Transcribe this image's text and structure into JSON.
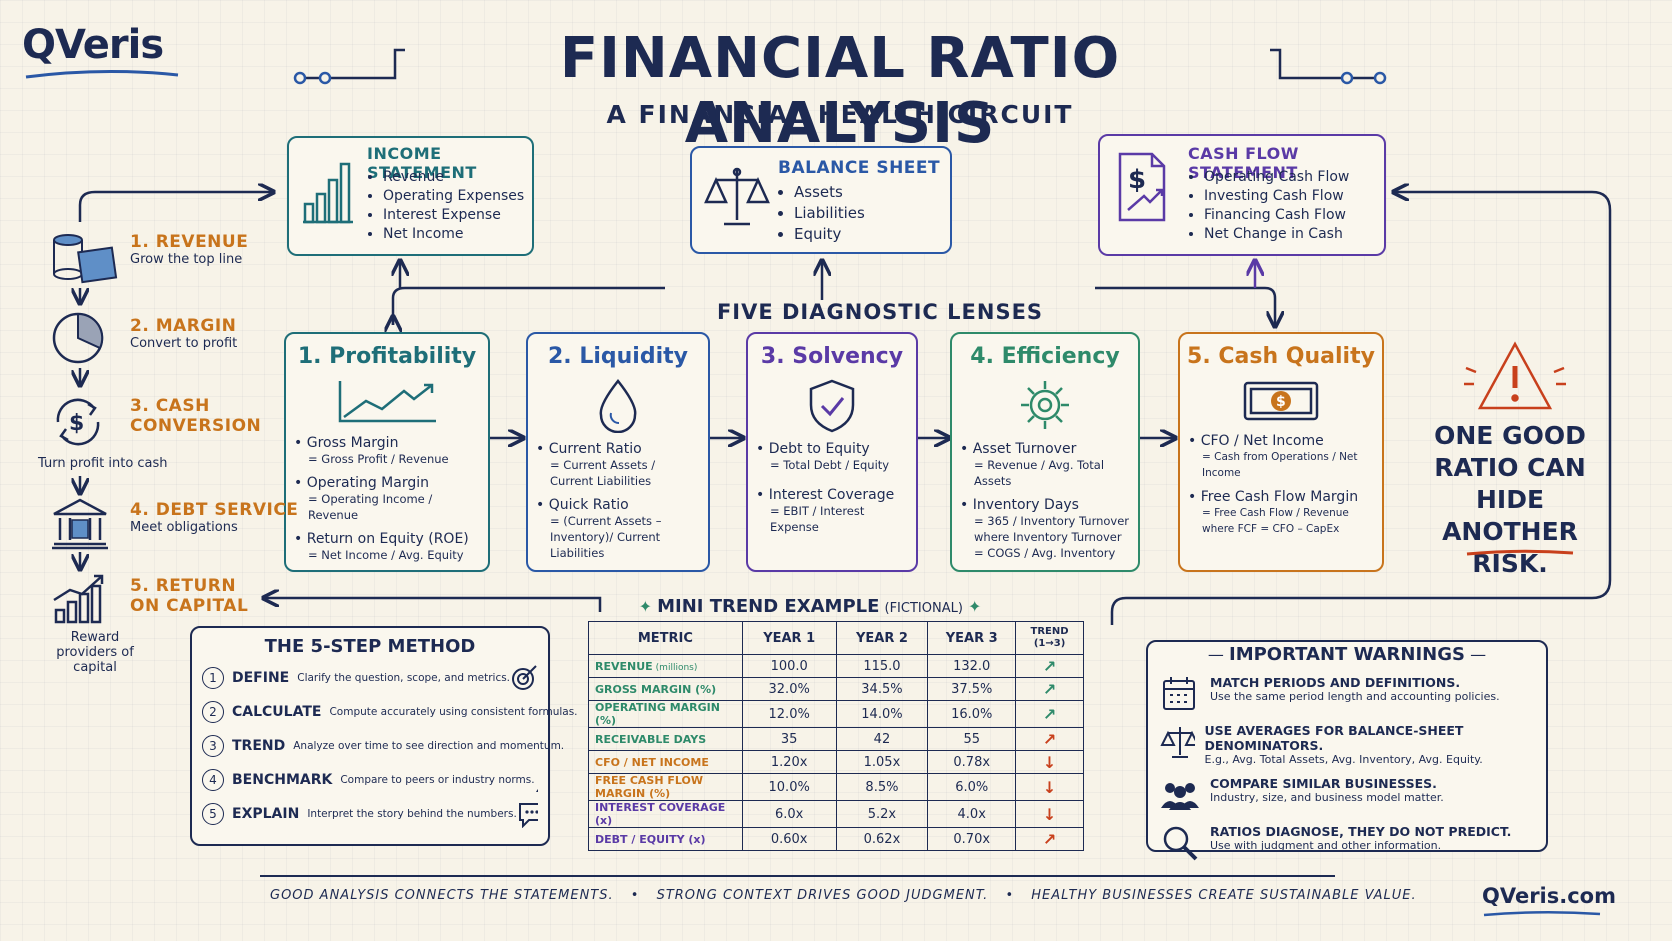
{
  "brand": {
    "logo": "QVeris",
    "url": "QVeris.com"
  },
  "title": "FINANCIAL RATIO ANALYSIS",
  "subtitle": "A FINANCIAL HEALTH CIRCUIT",
  "statements": {
    "income": {
      "title": "INCOME STATEMENT",
      "items": [
        "Revenue",
        "Operating Expenses",
        "Interest Expense",
        "Net Income"
      ]
    },
    "balance": {
      "title": "BALANCE SHEET",
      "items": [
        "Assets",
        "Liabilities",
        "Equity"
      ]
    },
    "cashflow": {
      "title": "CASH FLOW STATEMENT",
      "items": [
        "Operating Cash Flow",
        "Investing Cash Flow",
        "Financing Cash Flow",
        "Net Change in Cash"
      ]
    }
  },
  "lenses_title": "FIVE DIAGNOSTIC LENSES",
  "lenses": [
    {
      "title": "1. Profitability",
      "color": "#1e6e78",
      "ratios": [
        {
          "name": "Gross Margin",
          "formula": "= Gross Profit / Revenue"
        },
        {
          "name": "Operating Margin",
          "formula": "= Operating Income / Revenue"
        },
        {
          "name": "Return on Equity (ROE)",
          "formula": "= Net Income / Avg. Equity"
        }
      ]
    },
    {
      "title": "2. Liquidity",
      "color": "#2a58a6",
      "ratios": [
        {
          "name": "Current Ratio",
          "formula": "= Current Assets / Current Liabilities"
        },
        {
          "name": "Quick Ratio",
          "formula": "= (Current Assets – Inventory)/ Current Liabilities"
        }
      ]
    },
    {
      "title": "3. Solvency",
      "color": "#5a3aa6",
      "ratios": [
        {
          "name": "Debt to Equity",
          "formula": "= Total Debt / Equity"
        },
        {
          "name": "Interest Coverage",
          "formula": "= EBIT / Interest Expense"
        }
      ]
    },
    {
      "title": "4. Efficiency",
      "color": "#2e8a6a",
      "ratios": [
        {
          "name": "Asset Turnover",
          "formula": "= Revenue / Avg. Total Assets"
        },
        {
          "name": "Inventory Days",
          "formula": "= 365 / Inventory Turnover where Inventory Turnover = COGS / Avg. Inventory"
        }
      ]
    },
    {
      "title": "5. Cash Quality",
      "color": "#c8741c",
      "ratios": [
        {
          "name": "CFO / Net Income",
          "formula": "= Cash from Operations / Net Income"
        },
        {
          "name": "Free Cash Flow Margin",
          "formula": "= Free Cash Flow / Revenue where FCF = CFO – CapEx"
        }
      ]
    }
  ],
  "stages": [
    {
      "title": "1. Revenue",
      "sub": "Grow the top line"
    },
    {
      "title": "2. Margin",
      "sub": "Convert to profit"
    },
    {
      "title": "3. Cash Conversion",
      "sub": "Turn profit into cash"
    },
    {
      "title": "4. Debt Service",
      "sub": "Meet obligations"
    },
    {
      "title": "5. Return on Capital",
      "sub": "Reward providers of capital"
    }
  ],
  "warning_callout": "ONE GOOD RATIO CAN HIDE ANOTHER RISK.",
  "method": {
    "title": "THE 5-STEP METHOD",
    "steps": [
      {
        "num": "1",
        "name": "DEFINE",
        "desc": "Clarify the question, scope, and metrics."
      },
      {
        "num": "2",
        "name": "CALCULATE",
        "desc": "Compute accurately using consistent formulas."
      },
      {
        "num": "3",
        "name": "TREND",
        "desc": "Analyze over time to see direction and momentum."
      },
      {
        "num": "4",
        "name": "BENCHMARK",
        "desc": "Compare to peers or industry norms."
      },
      {
        "num": "5",
        "name": "EXPLAIN",
        "desc": "Interpret the story behind the numbers."
      }
    ]
  },
  "trend": {
    "title": "MINI TREND EXAMPLE",
    "title_note": "(FICTIONAL)",
    "headers": [
      "METRIC",
      "YEAR 1",
      "YEAR 2",
      "YEAR 3",
      "TREND (1→3)"
    ],
    "rows": [
      {
        "metric": "REVENUE",
        "unit": "(millions)",
        "y1": "100.0",
        "y2": "115.0",
        "y3": "132.0",
        "dir": "up",
        "color": "#2e8a6a"
      },
      {
        "metric": "GROSS MARGIN (%)",
        "unit": "",
        "y1": "32.0%",
        "y2": "34.5%",
        "y3": "37.5%",
        "dir": "up",
        "color": "#2e8a6a"
      },
      {
        "metric": "OPERATING MARGIN (%)",
        "unit": "",
        "y1": "12.0%",
        "y2": "14.0%",
        "y3": "16.0%",
        "dir": "up",
        "color": "#2e8a6a"
      },
      {
        "metric": "RECEIVABLE DAYS",
        "unit": "",
        "y1": "35",
        "y2": "42",
        "y3": "55",
        "dir": "up",
        "color": "#2e8a6a"
      },
      {
        "metric": "CFO / NET INCOME",
        "unit": "",
        "y1": "1.20x",
        "y2": "1.05x",
        "y3": "0.78x",
        "dir": "down",
        "color": "#c8741c"
      },
      {
        "metric": "FREE CASH FLOW MARGIN (%)",
        "unit": "",
        "y1": "10.0%",
        "y2": "8.5%",
        "y3": "6.0%",
        "dir": "down",
        "color": "#c8741c"
      },
      {
        "metric": "INTEREST COVERAGE (x)",
        "unit": "",
        "y1": "6.0x",
        "y2": "5.2x",
        "y3": "4.0x",
        "dir": "down",
        "color": "#5a3aa6"
      },
      {
        "metric": "DEBT / EQUITY (x)",
        "unit": "",
        "y1": "0.60x",
        "y2": "0.62x",
        "y3": "0.70x",
        "dir": "up",
        "color": "#5a3aa6"
      }
    ]
  },
  "warnings": {
    "title": "IMPORTANT WARNINGS",
    "items": [
      {
        "icon": "calendar-icon",
        "title": "MATCH PERIODS AND DEFINITIONS.",
        "desc": "Use the same period length and accounting policies."
      },
      {
        "icon": "scale-icon",
        "title": "USE AVERAGES FOR BALANCE-SHEET DENOMINATORS.",
        "desc": "E.g., Avg. Total Assets, Avg. Inventory, Avg. Equity."
      },
      {
        "icon": "people-icon",
        "title": "COMPARE SIMILAR BUSINESSES.",
        "desc": "Industry, size, and business model matter."
      },
      {
        "icon": "magnifier-icon",
        "title": "RATIOS DIAGNOSE, THEY DO NOT PREDICT.",
        "desc": "Use with judgment and other information."
      }
    ]
  },
  "footer": [
    "GOOD ANALYSIS CONNECTS THE STATEMENTS.",
    "STRONG CONTEXT DRIVES GOOD JUDGMENT.",
    "HEALTHY BUSINESSES CREATE SUSTAINABLE VALUE."
  ]
}
